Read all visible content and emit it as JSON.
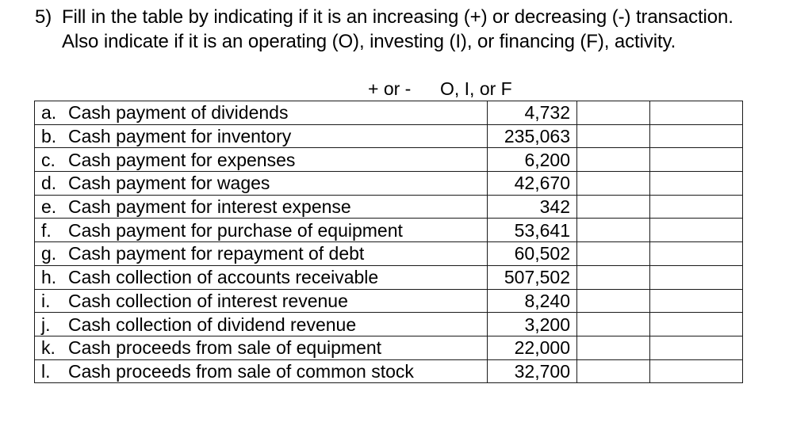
{
  "question": {
    "number": "5)",
    "line1": "Fill in the table by indicating if it is an increasing (+) or decreasing (-) transaction.",
    "line2": "Also indicate if it is an operating (O), investing (I), or financing (F), activity."
  },
  "table": {
    "headers": {
      "sign": "+ or -",
      "activity": "O, I, or F"
    },
    "rows": [
      {
        "letter": "a.",
        "description": "Cash payment of dividends",
        "amount": "4,732",
        "sign": "",
        "activity": ""
      },
      {
        "letter": "b.",
        "description": "Cash payment for inventory",
        "amount": "235,063",
        "sign": "",
        "activity": ""
      },
      {
        "letter": "c.",
        "description": "Cash payment for expenses",
        "amount": "6,200",
        "sign": "",
        "activity": ""
      },
      {
        "letter": "d.",
        "description": "Cash payment for wages",
        "amount": "42,670",
        "sign": "",
        "activity": ""
      },
      {
        "letter": "e.",
        "description": "Cash payment for interest expense",
        "amount": "342",
        "sign": "",
        "activity": ""
      },
      {
        "letter": "f.",
        "description": "Cash payment for purchase of equipment",
        "amount": "53,641",
        "sign": "",
        "activity": ""
      },
      {
        "letter": "g.",
        "description": "Cash payment for repayment of debt",
        "amount": "60,502",
        "sign": "",
        "activity": ""
      },
      {
        "letter": "h.",
        "description": "Cash collection of accounts receivable",
        "amount": "507,502",
        "sign": "",
        "activity": ""
      },
      {
        "letter": "i.",
        "description": "Cash collection of interest revenue",
        "amount": "8,240",
        "sign": "",
        "activity": ""
      },
      {
        "letter": "j.",
        "description": "Cash collection of dividend revenue",
        "amount": "3,200",
        "sign": "",
        "activity": ""
      },
      {
        "letter": "k.",
        "description": "Cash proceeds from sale of equipment",
        "amount": "22,000",
        "sign": "",
        "activity": ""
      },
      {
        "letter": "l.",
        "description": "Cash proceeds from sale of common stock",
        "amount": "32,700",
        "sign": "",
        "activity": ""
      }
    ]
  }
}
